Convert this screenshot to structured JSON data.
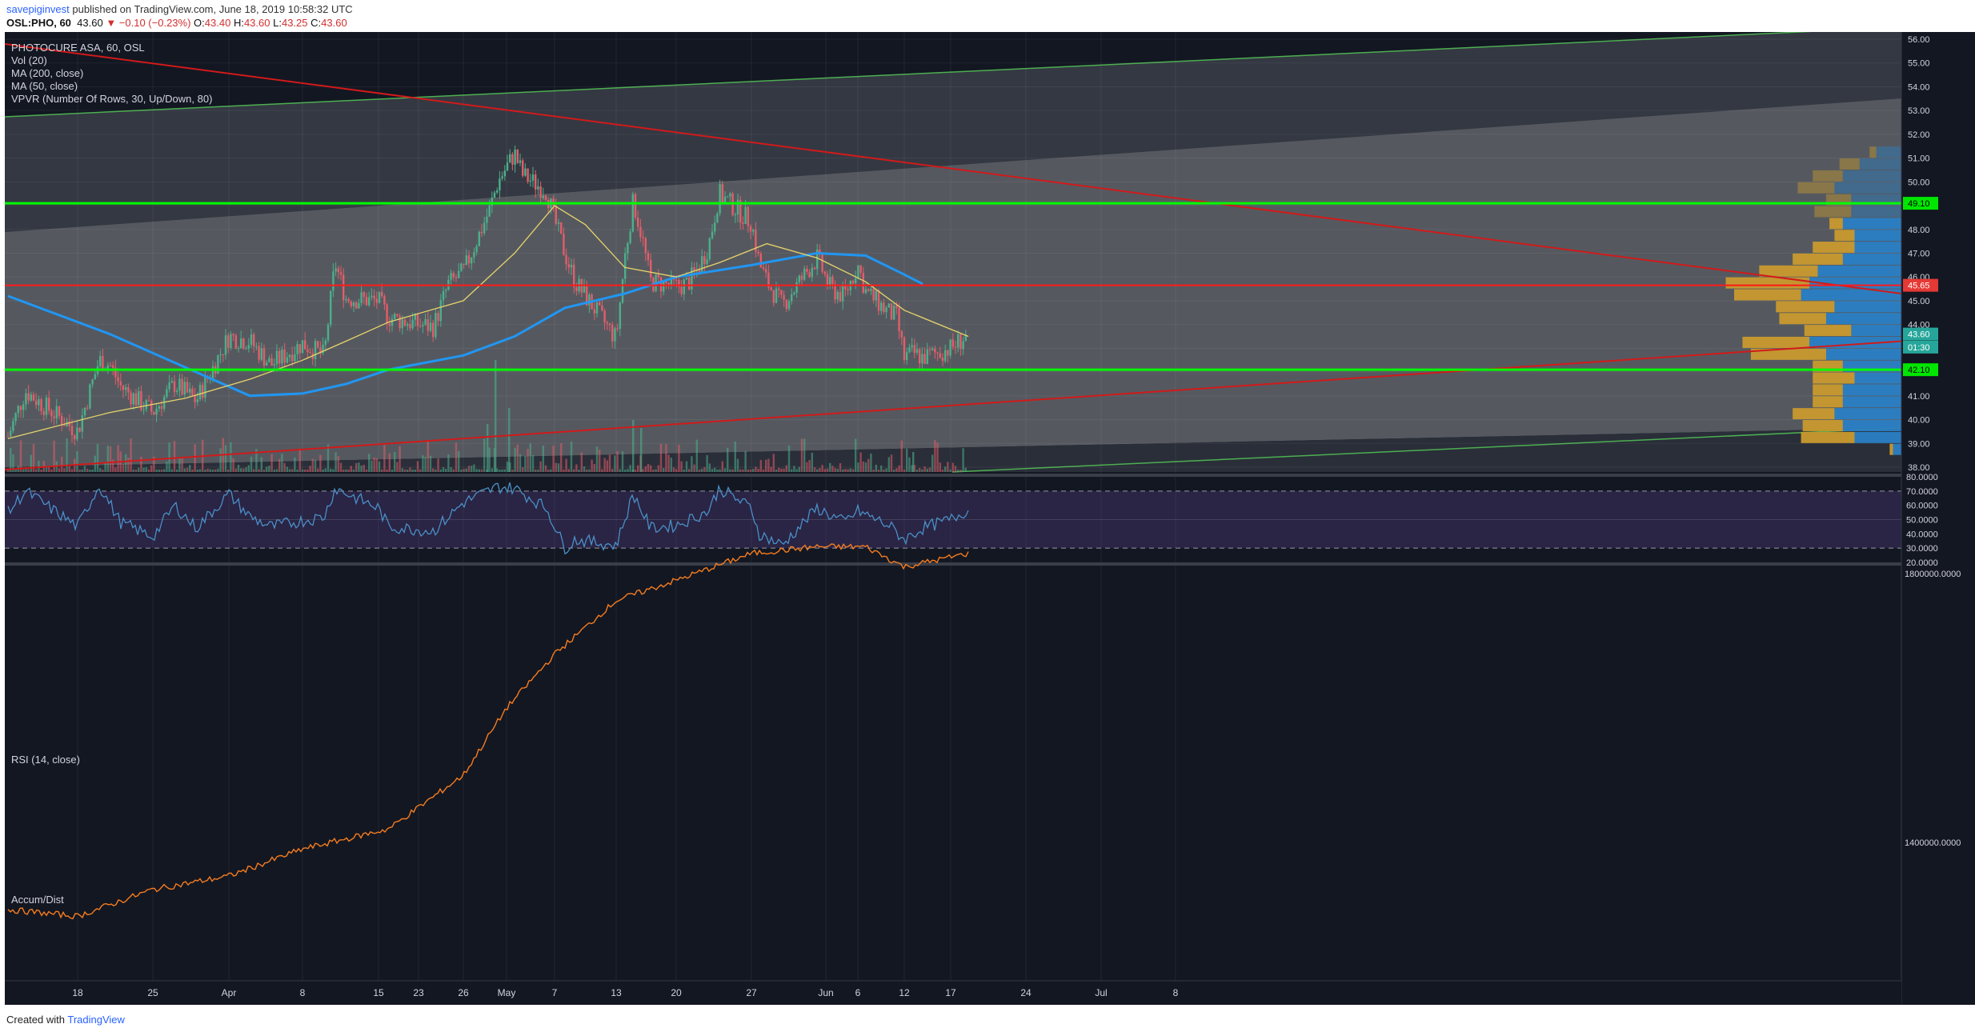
{
  "header": {
    "publisher": "savepiginvest",
    "published_text": "published on TradingView.com, June 18, 2019 10:58:32 UTC",
    "symbol": "OSL:PHO, 60",
    "price": "43.60",
    "change": "▼ −0.10 (−0.23%)",
    "ohlc": {
      "o": "43.40",
      "h": "43.60",
      "l": "43.25",
      "c": "43.60"
    }
  },
  "legend": {
    "title": "PHOTOCURE ASA, 60, OSL",
    "items": [
      "Vol (20)",
      "MA (200, close)",
      "MA (50, close)",
      "VPVR (Number Of Rows, 30, Up/Down, 80)"
    ]
  },
  "rsi_panel": {
    "label": "RSI (14, close)"
  },
  "ad_panel": {
    "label": "Accum/Dist"
  },
  "footer": {
    "created_with": "Created with",
    "brand": "TradingView"
  },
  "colors": {
    "background": "#131722",
    "up_candle": "#4caf8a",
    "down_candle": "#e35d6a",
    "ma200": "#2196f3",
    "ma50": "#e8d36b",
    "green_level": "#00ff00",
    "red_level": "#ff1a1a",
    "trend_red": "#d11a1a",
    "trend_green": "#4caf50",
    "rsi_line": "#4a90c6",
    "ad_line": "#f57c1f",
    "vpvr_up": "#2a7fc4",
    "vpvr_down": "#c99a2e"
  },
  "chart_data": {
    "type": "candlestick",
    "title": "PHOTOCURE ASA, 60, OSL",
    "x_ticks": [
      "18",
      "25",
      "Apr",
      "8",
      "15",
      "23",
      "26",
      "May",
      "7",
      "13",
      "20",
      "27",
      "Jun",
      "6",
      "12",
      "17",
      "24",
      "Jul",
      "8"
    ],
    "y_ticks": [
      "56.00",
      "55.00",
      "54.00",
      "53.00",
      "52.00",
      "51.00",
      "50.00",
      "49.00",
      "48.00",
      "47.00",
      "46.00",
      "45.00",
      "44.00",
      "43.00",
      "42.00",
      "41.00",
      "40.00",
      "39.00",
      "38.00"
    ],
    "ylim": [
      37.9,
      56.5
    ],
    "price_labels": [
      {
        "value": "49.10",
        "level": 49.1,
        "color": "#00e600"
      },
      {
        "value": "45.65",
        "level": 45.65,
        "color": "#e53935"
      },
      {
        "value": "43.60",
        "level": 43.6,
        "color": "#26a69a"
      },
      {
        "value": "01:30",
        "level": 43.05,
        "color": "#26a69a"
      },
      {
        "value": "42.10",
        "level": 42.1,
        "color": "#00e600"
      }
    ],
    "horizontal_levels": [
      {
        "price": 49.1,
        "color": "green"
      },
      {
        "price": 45.65,
        "color": "red"
      },
      {
        "price": 42.1,
        "color": "green"
      }
    ],
    "close_path": [
      {
        "x": "Mar 14",
        "y": 39.3
      },
      {
        "x": "Mar 15",
        "y": 41.2
      },
      {
        "x": "Mar 18",
        "y": 39.5
      },
      {
        "x": "Mar 20",
        "y": 42.5
      },
      {
        "x": "Mar 21",
        "y": 42.3
      },
      {
        "x": "Mar 22",
        "y": 41.4
      },
      {
        "x": "Mar 25",
        "y": 40.3
      },
      {
        "x": "Mar 27",
        "y": 41.5
      },
      {
        "x": "Mar 29",
        "y": 40.8
      },
      {
        "x": "Apr 1",
        "y": 43.5
      },
      {
        "x": "Apr 3",
        "y": 43.3
      },
      {
        "x": "Apr 5",
        "y": 42.3
      },
      {
        "x": "Apr 8",
        "y": 43.2
      },
      {
        "x": "Apr 10",
        "y": 42.7
      },
      {
        "x": "Apr 11",
        "y": 46.6
      },
      {
        "x": "Apr 12",
        "y": 45.1
      },
      {
        "x": "Apr 15",
        "y": 45.0
      },
      {
        "x": "Apr 17",
        "y": 44.3
      },
      {
        "x": "Apr 23",
        "y": 44.0
      },
      {
        "x": "Apr 24",
        "y": 43.9
      },
      {
        "x": "Apr 25",
        "y": 45.7
      },
      {
        "x": "Apr 26",
        "y": 46.2
      },
      {
        "x": "Apr 29",
        "y": 48.8
      },
      {
        "x": "Apr 30",
        "y": 50.0
      },
      {
        "x": "May 2",
        "y": 51.2
      },
      {
        "x": "May 3",
        "y": 50.3
      },
      {
        "x": "May 6",
        "y": 49.6
      },
      {
        "x": "May 7",
        "y": 48.4
      },
      {
        "x": "May 8",
        "y": 47.0
      },
      {
        "x": "May 9",
        "y": 45.8
      },
      {
        "x": "May 10",
        "y": 45.2
      },
      {
        "x": "May 13",
        "y": 43.4
      },
      {
        "x": "May 14",
        "y": 46.8
      },
      {
        "x": "May 15",
        "y": 49.2
      },
      {
        "x": "May 16",
        "y": 47.7
      },
      {
        "x": "May 17",
        "y": 45.8
      },
      {
        "x": "May 20",
        "y": 45.6
      },
      {
        "x": "May 21",
        "y": 45.7
      },
      {
        "x": "May 22",
        "y": 46.3
      },
      {
        "x": "May 23",
        "y": 47.3
      },
      {
        "x": "May 24",
        "y": 49.5
      },
      {
        "x": "May 27",
        "y": 48.3
      },
      {
        "x": "May 28",
        "y": 46.6
      },
      {
        "x": "May 29",
        "y": 45.8
      },
      {
        "x": "May 31",
        "y": 44.8
      },
      {
        "x": "Jun 3",
        "y": 46.8
      },
      {
        "x": "Jun 4",
        "y": 45.5
      },
      {
        "x": "Jun 5",
        "y": 45.2
      },
      {
        "x": "Jun 6",
        "y": 46.5
      },
      {
        "x": "Jun 7",
        "y": 45.4
      },
      {
        "x": "Jun 10",
        "y": 44.5
      },
      {
        "x": "Jun 11",
        "y": 44.3
      },
      {
        "x": "Jun 12",
        "y": 42.6
      },
      {
        "x": "Jun 13",
        "y": 42.8
      },
      {
        "x": "Jun 14",
        "y": 42.6
      },
      {
        "x": "Jun 17",
        "y": 43.0
      },
      {
        "x": "Jun 18",
        "y": 43.6
      }
    ],
    "ma200_path": [
      {
        "x": "Mar 14",
        "y": 45.2
      },
      {
        "x": "Mar 21",
        "y": 43.6
      },
      {
        "x": "Mar 28",
        "y": 42.2
      },
      {
        "x": "Apr 3",
        "y": 41.0
      },
      {
        "x": "Apr 8",
        "y": 41.1
      },
      {
        "x": "Apr 12",
        "y": 41.5
      },
      {
        "x": "Apr 17",
        "y": 42.1
      },
      {
        "x": "Apr 26",
        "y": 42.7
      },
      {
        "x": "May 2",
        "y": 43.5
      },
      {
        "x": "May 8",
        "y": 44.7
      },
      {
        "x": "May 14",
        "y": 45.3
      },
      {
        "x": "May 20",
        "y": 46.0
      },
      {
        "x": "May 27",
        "y": 46.5
      },
      {
        "x": "Jun 3",
        "y": 47.0
      },
      {
        "x": "Jun 7",
        "y": 46.9
      },
      {
        "x": "Jun 12",
        "y": 46.1
      },
      {
        "x": "Jun 14",
        "y": 45.7
      }
    ],
    "ma50_path": [
      {
        "x": "Mar 14",
        "y": 39.2
      },
      {
        "x": "Mar 21",
        "y": 40.3
      },
      {
        "x": "Mar 28",
        "y": 40.9
      },
      {
        "x": "Apr 3",
        "y": 41.7
      },
      {
        "x": "Apr 8",
        "y": 42.5
      },
      {
        "x": "Apr 12",
        "y": 43.3
      },
      {
        "x": "Apr 17",
        "y": 44.1
      },
      {
        "x": "Apr 26",
        "y": 45.0
      },
      {
        "x": "May 2",
        "y": 47.0
      },
      {
        "x": "May 7",
        "y": 49.0
      },
      {
        "x": "May 10",
        "y": 48.2
      },
      {
        "x": "May 14",
        "y": 46.4
      },
      {
        "x": "May 20",
        "y": 46.0
      },
      {
        "x": "May 24",
        "y": 46.6
      },
      {
        "x": "May 29",
        "y": 47.4
      },
      {
        "x": "Jun 3",
        "y": 46.8
      },
      {
        "x": "Jun 7",
        "y": 45.8
      },
      {
        "x": "Jun 12",
        "y": 44.6
      },
      {
        "x": "Jun 18",
        "y": 43.5
      }
    ],
    "vpvr": [
      {
        "price": 51.25,
        "up": 0.15,
        "down": 0.04
      },
      {
        "price": 50.75,
        "up": 0.25,
        "down": 0.12
      },
      {
        "price": 50.25,
        "up": 0.35,
        "down": 0.18
      },
      {
        "price": 49.75,
        "up": 0.4,
        "down": 0.22
      },
      {
        "price": 49.25,
        "up": 0.3,
        "down": 0.15
      },
      {
        "price": 48.75,
        "up": 0.3,
        "down": 0.22
      },
      {
        "price": 48.25,
        "up": 0.35,
        "down": 0.08
      },
      {
        "price": 47.75,
        "up": 0.28,
        "down": 0.12
      },
      {
        "price": 47.25,
        "up": 0.28,
        "down": 0.25
      },
      {
        "price": 46.75,
        "up": 0.35,
        "down": 0.3
      },
      {
        "price": 46.25,
        "up": 0.5,
        "down": 0.35
      },
      {
        "price": 45.75,
        "up": 0.55,
        "down": 0.5
      },
      {
        "price": 45.25,
        "up": 0.6,
        "down": 0.4
      },
      {
        "price": 44.75,
        "up": 0.4,
        "down": 0.35
      },
      {
        "price": 44.25,
        "up": 0.45,
        "down": 0.28
      },
      {
        "price": 43.75,
        "up": 0.3,
        "down": 0.28
      },
      {
        "price": 43.25,
        "up": 0.55,
        "down": 0.4
      },
      {
        "price": 42.75,
        "up": 0.45,
        "down": 0.45
      },
      {
        "price": 42.25,
        "up": 0.35,
        "down": 0.18
      },
      {
        "price": 41.75,
        "up": 0.28,
        "down": 0.25
      },
      {
        "price": 41.25,
        "up": 0.35,
        "down": 0.18
      },
      {
        "price": 40.75,
        "up": 0.35,
        "down": 0.18
      },
      {
        "price": 40.25,
        "up": 0.4,
        "down": 0.25
      },
      {
        "price": 39.75,
        "up": 0.35,
        "down": 0.24
      },
      {
        "price": 39.25,
        "up": 0.28,
        "down": 0.32
      },
      {
        "price": 38.75,
        "up": 0.05,
        "down": 0.02
      }
    ],
    "rsi": {
      "y_ticks": [
        "80.0000",
        "70.0000",
        "60.0000",
        "50.0000",
        "40.0000",
        "30.0000",
        "20.0000"
      ],
      "ylim": [
        20,
        80
      ],
      "bands": [
        30,
        70
      ],
      "path": [
        {
          "x": "Mar 14",
          "y": 55
        },
        {
          "x": "Mar 15",
          "y": 70
        },
        {
          "x": "Mar 18",
          "y": 45
        },
        {
          "x": "Mar 20",
          "y": 74
        },
        {
          "x": "Mar 22",
          "y": 48
        },
        {
          "x": "Mar 25",
          "y": 38
        },
        {
          "x": "Mar 27",
          "y": 60
        },
        {
          "x": "Mar 29",
          "y": 44
        },
        {
          "x": "Apr 1",
          "y": 68
        },
        {
          "x": "Apr 3",
          "y": 52
        },
        {
          "x": "Apr 5",
          "y": 45
        },
        {
          "x": "Apr 10",
          "y": 52
        },
        {
          "x": "Apr 11",
          "y": 72
        },
        {
          "x": "Apr 15",
          "y": 58
        },
        {
          "x": "Apr 17",
          "y": 45
        },
        {
          "x": "Apr 24",
          "y": 42
        },
        {
          "x": "Apr 26",
          "y": 62
        },
        {
          "x": "Apr 30",
          "y": 73
        },
        {
          "x": "May 2",
          "y": 72
        },
        {
          "x": "May 6",
          "y": 58
        },
        {
          "x": "May 8",
          "y": 30
        },
        {
          "x": "May 9",
          "y": 36
        },
        {
          "x": "May 13",
          "y": 32
        },
        {
          "x": "May 15",
          "y": 68
        },
        {
          "x": "May 17",
          "y": 44
        },
        {
          "x": "May 20",
          "y": 46
        },
        {
          "x": "May 23",
          "y": 56
        },
        {
          "x": "May 24",
          "y": 72
        },
        {
          "x": "May 27",
          "y": 58
        },
        {
          "x": "May 28",
          "y": 40
        },
        {
          "x": "May 31",
          "y": 32
        },
        {
          "x": "Jun 3",
          "y": 58
        },
        {
          "x": "Jun 5",
          "y": 48
        },
        {
          "x": "Jun 6",
          "y": 56
        },
        {
          "x": "Jun 10",
          "y": 46
        },
        {
          "x": "Jun 12",
          "y": 36
        },
        {
          "x": "Jun 14",
          "y": 44
        },
        {
          "x": "Jun 17",
          "y": 50
        },
        {
          "x": "Jun 18",
          "y": 57
        }
      ]
    },
    "accum_dist": {
      "y_ticks": [
        "1800000.0000",
        "1400000.0000"
      ],
      "path": [
        {
          "x": "Mar 14",
          "y": 1300000
        },
        {
          "x": "Mar 18",
          "y": 1290000
        },
        {
          "x": "Mar 25",
          "y": 1330000
        },
        {
          "x": "Apr 1",
          "y": 1350000
        },
        {
          "x": "Apr 8",
          "y": 1390000
        },
        {
          "x": "Apr 17",
          "y": 1420000
        },
        {
          "x": "Apr 26",
          "y": 1500000
        },
        {
          "x": "May 1",
          "y": 1600000
        },
        {
          "x": "May 7",
          "y": 1680000
        },
        {
          "x": "May 13",
          "y": 1760000
        },
        {
          "x": "May 20",
          "y": 1790000
        },
        {
          "x": "May 27",
          "y": 1830000
        },
        {
          "x": "Jun 3",
          "y": 1840000
        },
        {
          "x": "Jun 7",
          "y": 1840000
        },
        {
          "x": "Jun 12",
          "y": 1810000
        },
        {
          "x": "Jun 18",
          "y": 1830000
        }
      ]
    }
  }
}
